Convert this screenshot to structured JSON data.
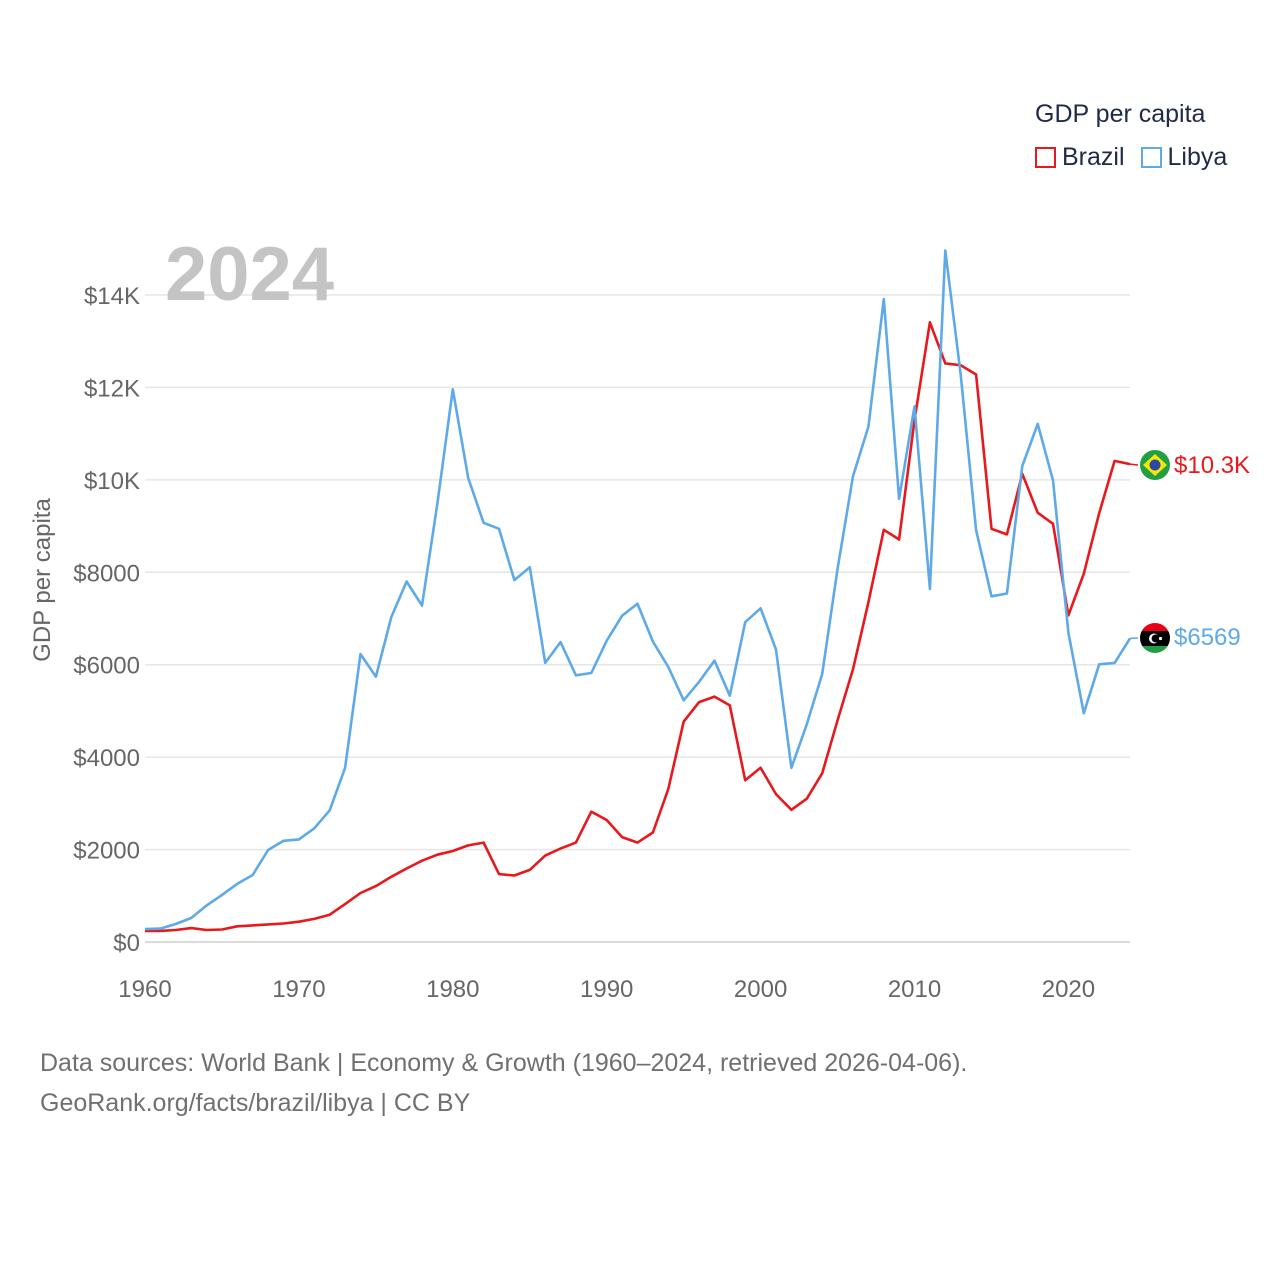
{
  "chart_data": {
    "type": "line",
    "legend_title": "GDP per capita",
    "ylabel": "GDP per capita",
    "xlabel": "",
    "year_label": "2024",
    "xlim": [
      1960,
      2024
    ],
    "ylim": [
      0,
      14000
    ],
    "x_ticks": [
      1960,
      1970,
      1980,
      1990,
      2000,
      2010,
      2020
    ],
    "x_tick_labels": [
      "1960",
      "1970",
      "1980",
      "1990",
      "2000",
      "2010",
      "2020"
    ],
    "y_ticks": [
      0,
      2000,
      4000,
      6000,
      8000,
      10000,
      12000,
      14000
    ],
    "y_tick_labels": [
      "$0",
      "$2000",
      "$4000",
      "$6000",
      "$8000",
      "$10K",
      "$12K",
      "$14K"
    ],
    "legend_position": "top-right",
    "grid": true,
    "x": [
      1960,
      1961,
      1962,
      1963,
      1964,
      1965,
      1966,
      1967,
      1968,
      1969,
      1970,
      1971,
      1972,
      1973,
      1974,
      1975,
      1976,
      1977,
      1978,
      1979,
      1980,
      1981,
      1982,
      1983,
      1984,
      1985,
      1986,
      1987,
      1988,
      1989,
      1990,
      1991,
      1992,
      1993,
      1994,
      1995,
      1996,
      1997,
      1998,
      1999,
      2000,
      2001,
      2002,
      2003,
      2004,
      2005,
      2006,
      2007,
      2008,
      2009,
      2010,
      2011,
      2012,
      2013,
      2014,
      2015,
      2016,
      2017,
      2018,
      2019,
      2020,
      2021,
      2022,
      2023,
      2024
    ],
    "series": [
      {
        "name": "Brazil",
        "color": "#e8191c",
        "end_label": "$10.3K",
        "flag": "brazil-flag-icon",
        "values": [
          240,
          240,
          260,
          300,
          260,
          270,
          340,
          360,
          380,
          400,
          440,
          500,
          590,
          820,
          1060,
          1210,
          1410,
          1590,
          1760,
          1890,
          1970,
          2090,
          2150,
          1470,
          1440,
          1560,
          1870,
          2020,
          2150,
          2820,
          2640,
          2270,
          2150,
          2370,
          3310,
          4770,
          5190,
          5310,
          5120,
          3500,
          3770,
          3200,
          2860,
          3100,
          3650,
          4800,
          5900,
          7350,
          8920,
          8710,
          11290,
          13410,
          12520,
          12480,
          12280,
          8940,
          8820,
          10130,
          9290,
          9050,
          7070,
          7970,
          9280,
          10410,
          10340
        ]
      },
      {
        "name": "Libya",
        "color": "#5ea9e8",
        "end_label": "$6569",
        "flag": "libya-flag-icon",
        "values": [
          280,
          290,
          390,
          520,
          790,
          1020,
          1260,
          1450,
          1990,
          2190,
          2220,
          2460,
          2850,
          3770,
          6230,
          5740,
          7030,
          7800,
          7280,
          9490,
          11960,
          10040,
          9070,
          8940,
          7830,
          8110,
          6040,
          6490,
          5770,
          5820,
          6520,
          7060,
          7320,
          6500,
          5950,
          5230,
          5630,
          6090,
          5330,
          6920,
          7220,
          6330,
          3770,
          4710,
          5800,
          8080,
          10080,
          11150,
          13910,
          9590,
          11590,
          7640,
          14960,
          12280,
          8910,
          7480,
          7540,
          10300,
          11210,
          9990,
          6690,
          4950,
          6010,
          6040,
          6569
        ]
      }
    ]
  },
  "source": {
    "line1": "Data sources: World Bank | Economy & Growth (1960–2024, retrieved 2026-04-06).",
    "line2": "GeoRank.org/facts/brazil/libya | CC BY"
  }
}
